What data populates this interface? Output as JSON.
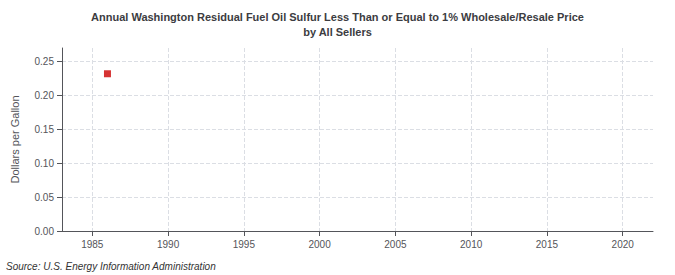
{
  "chart_data": {
    "type": "scatter",
    "title": "Annual Washington Residual Fuel Oil Sulfur Less Than or Equal to 1% Wholesale/Resale Price\nby All Sellers",
    "ylabel": "Dollars per Gallon",
    "annotation": "Source: U.S. Energy Information Administration",
    "x": [
      1986
    ],
    "values": [
      0.232
    ],
    "color": "#cc0000",
    "marker": "square",
    "xlim": [
      1983,
      2022
    ],
    "xticks": [
      1985,
      1990,
      1995,
      2000,
      2005,
      2010,
      2015,
      2020
    ],
    "ylim": [
      0.0,
      0.27
    ],
    "yticks": [
      {
        "value": 0.0,
        "label": "0.00"
      },
      {
        "value": 0.05,
        "label": "0.05"
      },
      {
        "value": 0.1,
        "label": "0.10"
      },
      {
        "value": 0.15,
        "label": "0.15"
      },
      {
        "value": 0.2,
        "label": "0.20"
      },
      {
        "value": 0.25,
        "label": "0.25"
      }
    ],
    "grid": true
  }
}
